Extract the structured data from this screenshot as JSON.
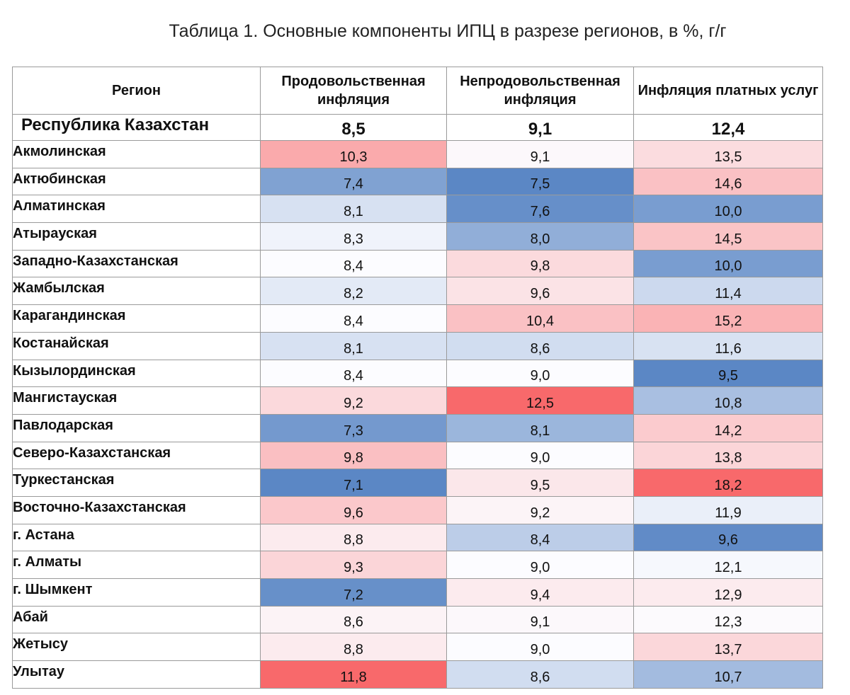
{
  "title": "Таблица 1. Основные компоненты ИПЦ в разрезе регионов, в %, г/г",
  "headers": {
    "region": "Регион",
    "food": "Продовольственная инфляция",
    "nonfood": "Непродовольственная инфляция",
    "services": "Инфляция платных услуг"
  },
  "total": {
    "region": "Республика Казахстан",
    "food": "8,5",
    "nonfood": "9,1",
    "services": "12,4"
  },
  "rows": [
    {
      "region": "Акмолинская",
      "food": "10,3",
      "nonfood": "9,1",
      "services": "13,5"
    },
    {
      "region": "Актюбинская",
      "food": "7,4",
      "nonfood": "7,5",
      "services": "14,6"
    },
    {
      "region": "Алматинская",
      "food": "8,1",
      "nonfood": "7,6",
      "services": "10,0"
    },
    {
      "region": "Атырауская",
      "food": "8,3",
      "nonfood": "8,0",
      "services": "14,5"
    },
    {
      "region": "Западно-Казахстанская",
      "food": "8,4",
      "nonfood": "9,8",
      "services": "10,0"
    },
    {
      "region": "Жамбылская",
      "food": "8,2",
      "nonfood": "9,6",
      "services": "11,4"
    },
    {
      "region": "Карагандинская",
      "food": "8,4",
      "nonfood": "10,4",
      "services": "15,2"
    },
    {
      "region": "Костанайская",
      "food": "8,1",
      "nonfood": "8,6",
      "services": "11,6"
    },
    {
      "region": "Кызылординская",
      "food": "8,4",
      "nonfood": "9,0",
      "services": "9,5"
    },
    {
      "region": "Мангистауская",
      "food": "9,2",
      "nonfood": "12,5",
      "services": "10,8"
    },
    {
      "region": "Павлодарская",
      "food": "7,3",
      "nonfood": "8,1",
      "services": "14,2"
    },
    {
      "region": "Северо-Казахстанская",
      "food": "9,8",
      "nonfood": "9,0",
      "services": "13,8"
    },
    {
      "region": "Туркестанская",
      "food": "7,1",
      "nonfood": "9,5",
      "services": "18,2"
    },
    {
      "region": "Восточно-Казахстанская",
      "food": "9,6",
      "nonfood": "9,2",
      "services": "11,9"
    },
    {
      "region": "г. Астана",
      "food": "8,8",
      "nonfood": "8,4",
      "services": "9,6"
    },
    {
      "region": "г. Алматы",
      "food": "9,3",
      "nonfood": "9,0",
      "services": "12,1"
    },
    {
      "region": "г. Шымкент",
      "food": "7,2",
      "nonfood": "9,4",
      "services": "12,9"
    },
    {
      "region": "Абай",
      "food": "8,6",
      "nonfood": "9,1",
      "services": "12,3"
    },
    {
      "region": "Жетысу",
      "food": "8,8",
      "nonfood": "9,0",
      "services": "13,7"
    },
    {
      "region": "Улытау",
      "food": "11,8",
      "nonfood": "8,6",
      "services": "10,7"
    }
  ],
  "colors": {
    "low": "#5b87c5",
    "mid": "#fcfcff",
    "high": "#f8696b",
    "border": "#9a9a9a"
  }
}
